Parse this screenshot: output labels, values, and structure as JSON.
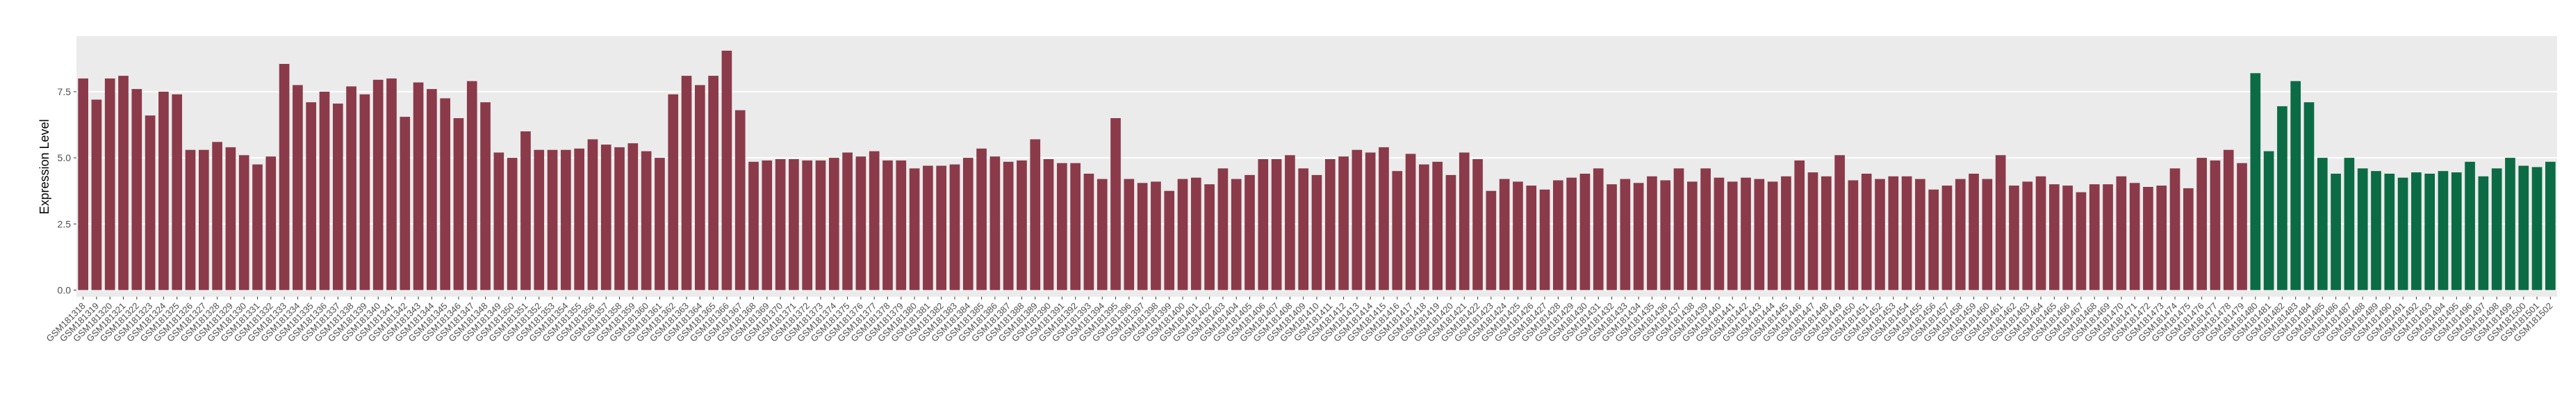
{
  "chart_data": {
    "type": "bar",
    "y_label": "Expression Level",
    "categories": [
      "GSM181318",
      "GSM181319",
      "GSM181320",
      "GSM181321",
      "GSM181322",
      "GSM181323",
      "GSM181324",
      "GSM181325",
      "GSM181326",
      "GSM181327",
      "GSM181328",
      "GSM181329",
      "GSM181330",
      "GSM181331",
      "GSM181332",
      "GSM181333",
      "GSM181334",
      "GSM181335",
      "GSM181336",
      "GSM181337",
      "GSM181338",
      "GSM181339",
      "GSM181340",
      "GSM181341",
      "GSM181342",
      "GSM181343",
      "GSM181344",
      "GSM181345",
      "GSM181346",
      "GSM181347",
      "GSM181348",
      "GSM181349",
      "GSM181350",
      "GSM181351",
      "GSM181352",
      "GSM181353",
      "GSM181354",
      "GSM181355",
      "GSM181356",
      "GSM181357",
      "GSM181358",
      "GSM181359",
      "GSM181360",
      "GSM181361",
      "GSM181362",
      "GSM181363",
      "GSM181364",
      "GSM181365",
      "GSM181366",
      "GSM181367",
      "GSM181368",
      "GSM181369",
      "GSM181370",
      "GSM181371",
      "GSM181372",
      "GSM181373",
      "GSM181374",
      "GSM181375",
      "GSM181376",
      "GSM181377",
      "GSM181378",
      "GSM181379",
      "GSM181380",
      "GSM181381",
      "GSM181382",
      "GSM181383",
      "GSM181384",
      "GSM181385",
      "GSM181386",
      "GSM181387",
      "GSM181388",
      "GSM181389",
      "GSM181390",
      "GSM181391",
      "GSM181392",
      "GSM181393",
      "GSM181394",
      "GSM181395",
      "GSM181396",
      "GSM181397",
      "GSM181398",
      "GSM181399",
      "GSM181400",
      "GSM181401",
      "GSM181402",
      "GSM181403",
      "GSM181404",
      "GSM181405",
      "GSM181406",
      "GSM181407",
      "GSM181408",
      "GSM181409",
      "GSM181410",
      "GSM181411",
      "GSM181412",
      "GSM181413",
      "GSM181414",
      "GSM181415",
      "GSM181416",
      "GSM181417",
      "GSM181418",
      "GSM181419",
      "GSM181420",
      "GSM181421",
      "GSM181422",
      "GSM181423",
      "GSM181424",
      "GSM181425",
      "GSM181426",
      "GSM181427",
      "GSM181428",
      "GSM181429",
      "GSM181430",
      "GSM181431",
      "GSM181432",
      "GSM181433",
      "GSM181434",
      "GSM181435",
      "GSM181436",
      "GSM181437",
      "GSM181438",
      "GSM181439",
      "GSM181440",
      "GSM181441",
      "GSM181442",
      "GSM181443",
      "GSM181444",
      "GSM181445",
      "GSM181446",
      "GSM181447",
      "GSM181448",
      "GSM181449",
      "GSM181450",
      "GSM181451",
      "GSM181452",
      "GSM181453",
      "GSM181454",
      "GSM181455",
      "GSM181456",
      "GSM181457",
      "GSM181458",
      "GSM181459",
      "GSM181460",
      "GSM181461",
      "GSM181462",
      "GSM181463",
      "GSM181464",
      "GSM181465",
      "GSM181466",
      "GSM181467",
      "GSM181468",
      "GSM181469",
      "GSM181470",
      "GSM181471",
      "GSM181472",
      "GSM181473",
      "GSM181474",
      "GSM181475",
      "GSM181476",
      "GSM181477",
      "GSM181478",
      "GSM181479",
      "GSM181480",
      "GSM181481",
      "GSM181482",
      "GSM181483",
      "GSM181484",
      "GSM181485",
      "GSM181486",
      "GSM181487",
      "GSM181488",
      "GSM181489",
      "GSM181490",
      "GSM181491",
      "GSM181492",
      "GSM181493",
      "GSM181494",
      "GSM181495",
      "GSM181496",
      "GSM181497",
      "GSM181498",
      "GSM181499",
      "GSM181500",
      "GSM181501",
      "GSM181502"
    ],
    "series": [
      {
        "color": "#8b3a4a",
        "values": [
          8.0,
          7.2,
          8.0,
          8.1,
          7.6,
          6.6,
          7.5,
          7.4,
          5.3,
          5.3,
          5.6,
          5.4,
          5.1,
          4.75,
          5.05,
          8.55,
          7.75,
          7.1,
          7.5,
          7.05,
          7.7,
          7.4,
          7.95,
          8.0,
          6.55,
          7.85,
          7.6,
          7.25,
          6.5,
          7.9,
          7.1,
          5.2,
          5.0,
          6.0,
          5.3,
          5.3,
          5.3,
          5.35,
          5.7,
          5.5,
          5.4,
          5.55,
          5.25,
          5.0,
          7.4,
          8.1,
          7.75,
          8.1,
          9.05,
          6.8,
          4.85,
          4.9,
          4.95,
          4.95,
          4.9,
          4.9,
          5.0,
          5.2,
          5.05,
          5.25,
          4.9,
          4.9,
          4.6,
          4.7,
          4.7,
          4.75,
          5.0,
          5.35,
          5.05,
          4.85,
          4.9,
          5.7,
          4.95,
          4.8,
          4.8,
          4.4,
          4.2,
          6.5,
          4.2,
          4.05,
          4.1,
          3.75,
          4.2,
          4.25,
          4.0,
          4.6,
          4.2,
          4.35,
          4.95,
          4.95,
          5.1,
          4.6,
          4.35,
          4.95,
          5.05,
          5.3,
          5.2,
          5.4,
          4.5,
          5.15,
          4.75,
          4.85,
          4.35,
          5.2,
          4.95,
          3.75,
          4.2,
          4.1,
          3.95,
          3.8,
          4.15,
          4.25,
          4.4,
          4.6,
          4.0,
          4.2,
          4.05,
          4.3,
          4.15,
          4.6,
          4.1,
          4.6,
          4.25,
          4.1,
          4.25,
          4.2,
          4.1,
          4.3,
          4.9,
          4.45,
          4.3,
          5.1,
          4.15,
          4.4,
          4.2,
          4.3,
          4.3,
          4.2,
          3.8,
          3.95,
          4.2,
          4.4,
          4.2,
          5.1,
          3.95,
          4.1,
          4.3,
          4.0,
          3.95,
          3.7,
          4.0,
          4.0,
          4.3,
          4.05,
          3.9,
          3.95,
          4.6,
          3.85,
          5.0,
          4.9,
          5.3,
          4.8,
          null,
          null,
          null,
          null,
          null,
          null,
          null,
          null,
          null,
          null,
          null,
          null,
          null,
          null,
          null,
          null,
          null,
          null,
          null,
          null,
          null,
          null,
          null
        ]
      },
      {
        "color": "#0b6b45",
        "values": [
          null,
          null,
          null,
          null,
          null,
          null,
          null,
          null,
          null,
          null,
          null,
          null,
          null,
          null,
          null,
          null,
          null,
          null,
          null,
          null,
          null,
          null,
          null,
          null,
          null,
          null,
          null,
          null,
          null,
          null,
          null,
          null,
          null,
          null,
          null,
          null,
          null,
          null,
          null,
          null,
          null,
          null,
          null,
          null,
          null,
          null,
          null,
          null,
          null,
          null,
          null,
          null,
          null,
          null,
          null,
          null,
          null,
          null,
          null,
          null,
          null,
          null,
          null,
          null,
          null,
          null,
          null,
          null,
          null,
          null,
          null,
          null,
          null,
          null,
          null,
          null,
          null,
          null,
          null,
          null,
          null,
          null,
          null,
          null,
          null,
          null,
          null,
          null,
          null,
          null,
          null,
          null,
          null,
          null,
          null,
          null,
          null,
          null,
          null,
          null,
          null,
          null,
          null,
          null,
          null,
          null,
          null,
          null,
          null,
          null,
          null,
          null,
          null,
          null,
          null,
          null,
          null,
          null,
          null,
          null,
          null,
          null,
          null,
          null,
          null,
          null,
          null,
          null,
          null,
          null,
          null,
          null,
          null,
          null,
          null,
          null,
          null,
          null,
          null,
          null,
          null,
          null,
          null,
          null,
          null,
          null,
          null,
          null,
          null,
          null,
          null,
          null,
          null,
          null,
          null,
          null,
          null,
          null,
          null,
          null,
          null,
          null,
          8.2,
          5.25,
          6.95,
          7.9,
          7.1,
          5.0,
          4.4,
          5.0,
          4.6,
          4.5,
          4.4,
          4.25,
          4.45,
          4.4,
          4.5,
          4.45,
          4.85,
          4.3,
          4.6,
          5.0,
          4.7,
          4.65,
          4.85
        ]
      }
    ],
    "ylim": [
      -0.25,
      9.6
    ],
    "yticks": [
      {
        "value": 0,
        "label": "0.0"
      },
      {
        "value": 2.5,
        "label": "2.5"
      },
      {
        "value": 5,
        "label": "5.0"
      },
      {
        "value": 7.5,
        "label": "7.5"
      }
    ],
    "grid": true
  }
}
